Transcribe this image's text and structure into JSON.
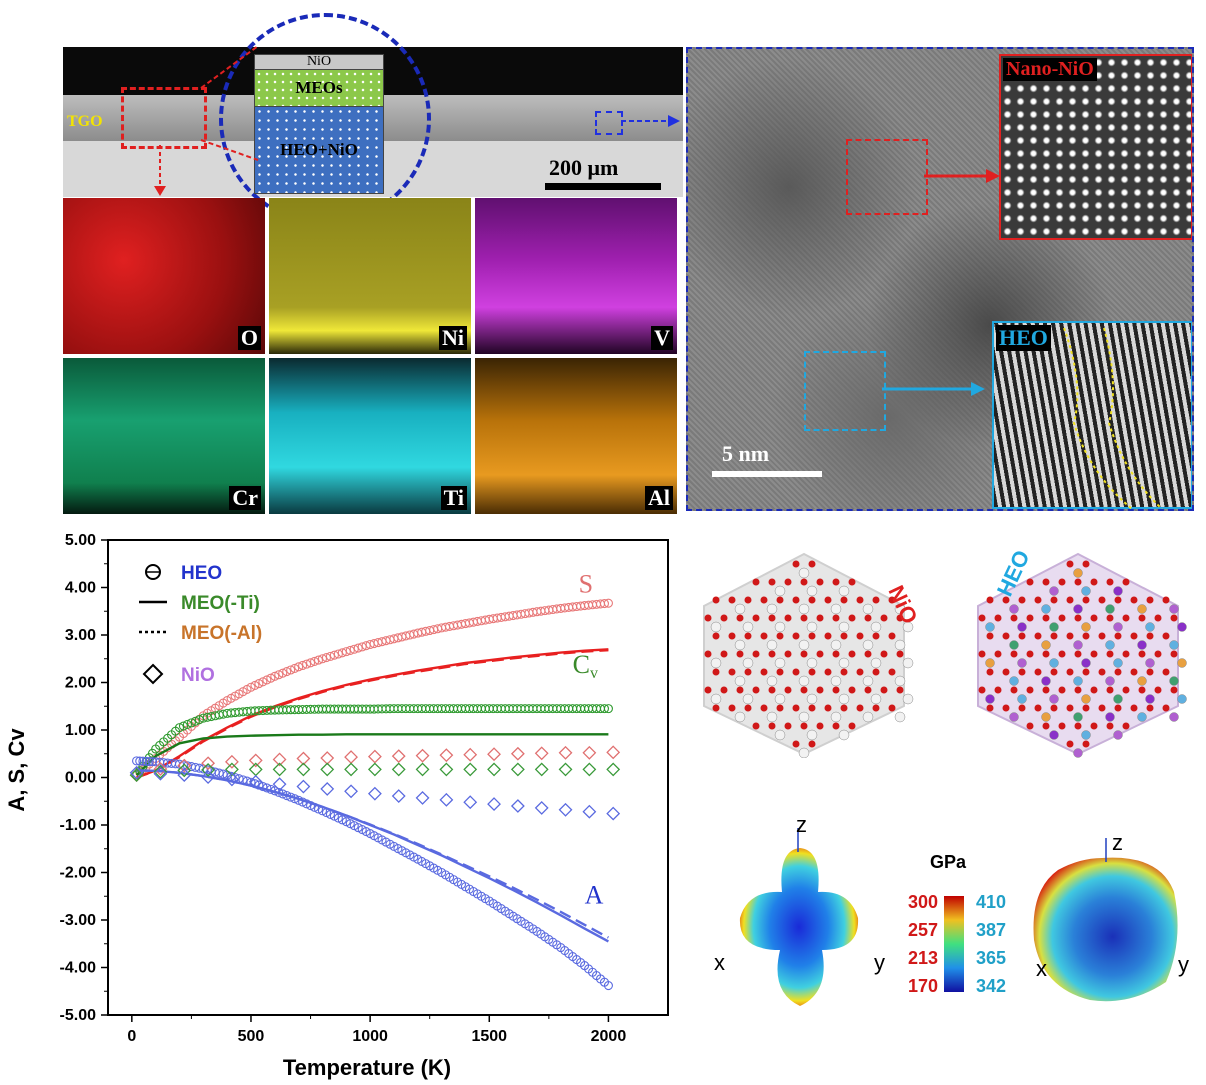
{
  "sem": {
    "tgo_label": "TGO",
    "layer_nio": "NiO",
    "layer_meos": "MEOs",
    "layer_heo_nio": "HEO+NiO",
    "scale": "200 μm"
  },
  "eds_maps": [
    {
      "element": "O",
      "color": "#d41414"
    },
    {
      "element": "Ni",
      "color": "#d8d020"
    },
    {
      "element": "V",
      "color": "#c020c8"
    },
    {
      "element": "Cr",
      "color": "#18a870"
    },
    {
      "element": "Ti",
      "color": "#18c8d0"
    },
    {
      "element": "Al",
      "color": "#d88a10"
    }
  ],
  "tem": {
    "nano_nio_label": "Nano-NiO",
    "heo_label": "HEO",
    "scale": "5 nm"
  },
  "structures": {
    "nio_label": "NiO",
    "heo_label": "HEO"
  },
  "modulus": {
    "unit": "GPa",
    "left_scale": [
      "300",
      "257",
      "213",
      "170"
    ],
    "right_scale": [
      "410",
      "387",
      "365",
      "342"
    ],
    "axis_x": "x",
    "axis_y": "y",
    "axis_z": "z"
  },
  "chart_data": {
    "type": "line",
    "xlabel": "Temperature (K)",
    "ylabel": "A, S, Cv",
    "xlim": [
      -100,
      2250
    ],
    "ylim": [
      -5,
      5
    ],
    "x_ticks": [
      0,
      500,
      1000,
      1500,
      2000
    ],
    "y_ticks": [
      "5.00",
      "4.00",
      "3.00",
      "2.00",
      "1.00",
      "0.00",
      "-1.00",
      "-2.00",
      "-3.00",
      "-4.00",
      "-5.00"
    ],
    "legend": [
      {
        "symbol": "circle",
        "label": "HEO",
        "color": "#2233cc"
      },
      {
        "symbol": "solid",
        "label": "MEO(-Ti)",
        "color": "#3a8a2a"
      },
      {
        "symbol": "dotted",
        "label": "MEO(-Al)",
        "color": "#c8742a"
      },
      {
        "symbol": "diamond",
        "label": "NiO",
        "color": "#b070e0"
      }
    ],
    "annotations": [
      {
        "text": "S",
        "x": 1875,
        "y": 3.9,
        "color": "#e07070"
      },
      {
        "text": "Cv",
        "x": 1850,
        "y": 2.2,
        "color": "#3a8a2a"
      },
      {
        "text": "A",
        "x": 1900,
        "y": -2.65,
        "color": "#2233cc"
      }
    ],
    "series": [
      {
        "name": "S HEO",
        "group": "S",
        "color": "#e87878",
        "marker": "circle",
        "x": [
          20,
          100,
          200,
          300,
          400,
          500,
          600,
          700,
          800,
          900,
          1000,
          1100,
          1200,
          1300,
          1400,
          1500,
          1600,
          1700,
          1800,
          1900,
          2000
        ],
        "y": [
          0.05,
          0.4,
          0.85,
          1.3,
          1.62,
          1.9,
          2.13,
          2.33,
          2.5,
          2.65,
          2.8,
          2.92,
          3.04,
          3.15,
          3.24,
          3.33,
          3.41,
          3.49,
          3.56,
          3.62,
          3.67
        ]
      },
      {
        "name": "S MEO(-Ti)",
        "group": "S",
        "color": "#e82020",
        "style": "solid",
        "x": [
          20,
          100,
          200,
          300,
          400,
          500,
          600,
          700,
          800,
          900,
          1000,
          1100,
          1200,
          1300,
          1400,
          1500,
          1600,
          1700,
          1800,
          1900,
          2000
        ],
        "y": [
          0.0,
          0.15,
          0.45,
          0.78,
          1.05,
          1.3,
          1.5,
          1.67,
          1.82,
          1.95,
          2.06,
          2.16,
          2.25,
          2.33,
          2.41,
          2.47,
          2.53,
          2.58,
          2.63,
          2.67,
          2.7
        ]
      },
      {
        "name": "S MEO(-Al)",
        "group": "S",
        "color": "#e82020",
        "style": "dashed",
        "x": [
          20,
          100,
          200,
          300,
          400,
          500,
          600,
          700,
          800,
          900,
          1000,
          1100,
          1200,
          1300,
          1400,
          1500,
          1600,
          1700,
          1800,
          1900,
          2000
        ],
        "y": [
          0.0,
          0.14,
          0.43,
          0.76,
          1.03,
          1.28,
          1.48,
          1.65,
          1.8,
          1.93,
          2.04,
          2.14,
          2.23,
          2.31,
          2.39,
          2.45,
          2.51,
          2.56,
          2.61,
          2.65,
          2.68
        ]
      },
      {
        "name": "Cv HEO",
        "group": "Cv",
        "color": "#2e9a2e",
        "marker": "circle",
        "x": [
          20,
          100,
          200,
          300,
          400,
          500,
          600,
          700,
          800,
          900,
          1000,
          1100,
          1200,
          1300,
          1400,
          1500,
          1600,
          1700,
          1800,
          1900,
          2000
        ],
        "y": [
          0.05,
          0.6,
          1.05,
          1.25,
          1.35,
          1.4,
          1.42,
          1.43,
          1.44,
          1.44,
          1.44,
          1.45,
          1.45,
          1.45,
          1.45,
          1.45,
          1.45,
          1.45,
          1.45,
          1.45,
          1.45
        ]
      },
      {
        "name": "Cv MEO",
        "group": "Cv",
        "color": "#1a7a1a",
        "style": "solid",
        "x": [
          20,
          100,
          200,
          300,
          400,
          500,
          600,
          700,
          800,
          900,
          1000,
          1200,
          1400,
          1600,
          1800,
          2000
        ],
        "y": [
          0.05,
          0.45,
          0.72,
          0.82,
          0.86,
          0.88,
          0.89,
          0.9,
          0.9,
          0.91,
          0.91,
          0.91,
          0.91,
          0.91,
          0.91,
          0.91
        ]
      },
      {
        "name": "A HEO",
        "group": "A",
        "color": "#5a6ae0",
        "marker": "circle",
        "x": [
          20,
          100,
          200,
          300,
          400,
          500,
          600,
          700,
          800,
          900,
          1000,
          1100,
          1200,
          1300,
          1400,
          1500,
          1600,
          1700,
          1800,
          1900,
          2000
        ],
        "y": [
          0.35,
          0.33,
          0.28,
          0.18,
          0.05,
          -0.1,
          -0.28,
          -0.48,
          -0.7,
          -0.93,
          -1.18,
          -1.45,
          -1.72,
          -2.0,
          -2.3,
          -2.6,
          -2.92,
          -3.24,
          -3.58,
          -3.96,
          -4.38
        ]
      },
      {
        "name": "A MEO(-Ti)",
        "group": "A",
        "color": "#5a6ae0",
        "style": "solid",
        "x": [
          20,
          100,
          200,
          300,
          400,
          500,
          600,
          700,
          800,
          900,
          1000,
          1100,
          1200,
          1300,
          1400,
          1500,
          1600,
          1700,
          1800,
          1900,
          2000
        ],
        "y": [
          0.15,
          0.14,
          0.1,
          0.03,
          -0.06,
          -0.17,
          -0.3,
          -0.45,
          -0.62,
          -0.8,
          -1.0,
          -1.2,
          -1.42,
          -1.64,
          -1.88,
          -2.12,
          -2.37,
          -2.63,
          -2.9,
          -3.18,
          -3.45
        ]
      },
      {
        "name": "A MEO(-Al)",
        "group": "A",
        "color": "#5a6ae0",
        "style": "dashed",
        "x": [
          20,
          100,
          200,
          300,
          400,
          500,
          600,
          700,
          800,
          900,
          1000,
          1100,
          1200,
          1300,
          1400,
          1500,
          1600,
          1700,
          1800,
          1900,
          2000
        ],
        "y": [
          0.15,
          0.14,
          0.1,
          0.03,
          -0.06,
          -0.17,
          -0.3,
          -0.45,
          -0.62,
          -0.8,
          -0.99,
          -1.19,
          -1.4,
          -1.62,
          -1.85,
          -2.08,
          -2.32,
          -2.57,
          -2.83,
          -3.1,
          -3.37
        ]
      },
      {
        "name": "S NiO",
        "group": "S",
        "color": "#e07070",
        "marker": "diamond",
        "x": [
          20,
          120,
          220,
          320,
          420,
          520,
          620,
          720,
          820,
          920,
          1020,
          1120,
          1220,
          1320,
          1420,
          1520,
          1620,
          1720,
          1820,
          1920,
          2020
        ],
        "y": [
          0.05,
          0.18,
          0.25,
          0.3,
          0.33,
          0.36,
          0.38,
          0.4,
          0.41,
          0.43,
          0.44,
          0.45,
          0.46,
          0.47,
          0.48,
          0.49,
          0.5,
          0.51,
          0.52,
          0.52,
          0.53
        ]
      },
      {
        "name": "Cv NiO",
        "group": "Cv",
        "color": "#3a9a3a",
        "marker": "diamond",
        "x": [
          20,
          120,
          220,
          320,
          420,
          520,
          620,
          720,
          820,
          920,
          1020,
          1120,
          1220,
          1320,
          1420,
          1520,
          1620,
          1720,
          1820,
          1920,
          2020
        ],
        "y": [
          0.05,
          0.12,
          0.15,
          0.16,
          0.17,
          0.17,
          0.17,
          0.17,
          0.17,
          0.17,
          0.17,
          0.17,
          0.17,
          0.17,
          0.17,
          0.17,
          0.17,
          0.17,
          0.17,
          0.17,
          0.17
        ]
      },
      {
        "name": "A NiO",
        "group": "A",
        "color": "#5a6ae0",
        "marker": "diamond",
        "x": [
          20,
          120,
          220,
          320,
          420,
          520,
          620,
          720,
          820,
          920,
          1020,
          1120,
          1220,
          1320,
          1420,
          1520,
          1620,
          1720,
          1820,
          1920,
          2020
        ],
        "y": [
          0.1,
          0.08,
          0.05,
          0.01,
          -0.04,
          -0.09,
          -0.14,
          -0.19,
          -0.24,
          -0.29,
          -0.34,
          -0.39,
          -0.43,
          -0.47,
          -0.52,
          -0.56,
          -0.6,
          -0.64,
          -0.68,
          -0.72,
          -0.76
        ]
      }
    ]
  }
}
